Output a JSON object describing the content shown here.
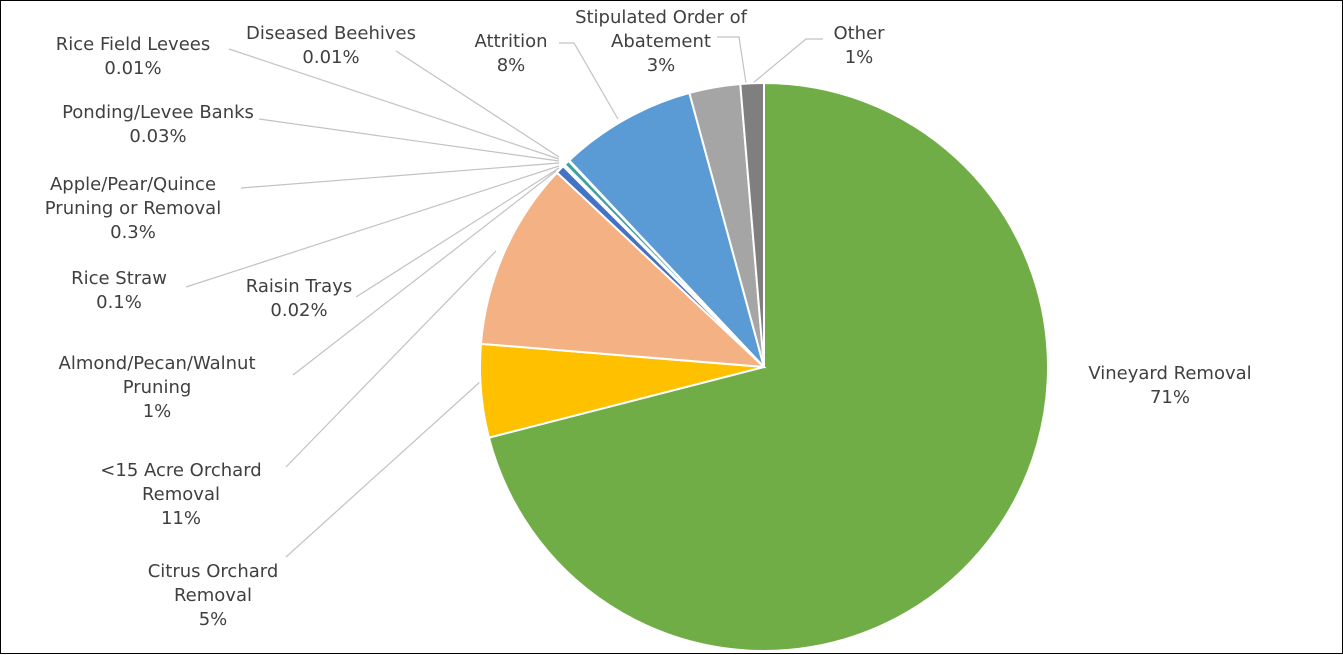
{
  "chart_data": {
    "type": "pie",
    "title": "",
    "start_angle_deg": 0,
    "direction": "clockwise",
    "slices": [
      {
        "name": "Vineyard Removal",
        "label_lines": [
          "Vineyard Removal"
        ],
        "pct_label": "71%",
        "value": 71.0,
        "color": "#70ad47"
      },
      {
        "name": "Citrus Orchard Removal",
        "label_lines": [
          "Citrus Orchard",
          "Removal"
        ],
        "pct_label": "5%",
        "value": 5.3,
        "color": "#ffc000"
      },
      {
        "name": "<15 Acre Orchard Removal",
        "label_lines": [
          "<15 Acre Orchard",
          "Removal"
        ],
        "pct_label": "11%",
        "value": 10.7,
        "color": "#f4b183"
      },
      {
        "name": "Almond/Pecan/Walnut Pruning",
        "label_lines": [
          "Almond/Pecan/Walnut",
          "Pruning"
        ],
        "pct_label": "1%",
        "value": 0.5,
        "color": "#4472c4"
      },
      {
        "name": "Raisin Trays",
        "label_lines": [
          "Raisin Trays"
        ],
        "pct_label": "0.02%",
        "value": 0.02,
        "color": "#c55a11"
      },
      {
        "name": "Rice Straw",
        "label_lines": [
          "Rice Straw"
        ],
        "pct_label": "0.1%",
        "value": 0.1,
        "color": "#548235"
      },
      {
        "name": "Apple/Pear/Quince Pruning or Removal",
        "label_lines": [
          "Apple/Pear/Quince",
          "Pruning or Removal"
        ],
        "pct_label": "0.3%",
        "value": 0.3,
        "color": "#43a0a0"
      },
      {
        "name": "Ponding/Levee Banks",
        "label_lines": [
          "Ponding/Levee Banks"
        ],
        "pct_label": "0.03%",
        "value": 0.03,
        "color": "#7f6000"
      },
      {
        "name": "Rice Field Levees",
        "label_lines": [
          "Rice Field Levees"
        ],
        "pct_label": "0.01%",
        "value": 0.01,
        "color": "#264478"
      },
      {
        "name": "Diseased Beehives",
        "label_lines": [
          "Diseased Beehives"
        ],
        "pct_label": "0.01%",
        "value": 0.01,
        "color": "#9e480e"
      },
      {
        "name": "Attrition",
        "label_lines": [
          "Attrition"
        ],
        "pct_label": "8%",
        "value": 7.8,
        "color": "#5b9bd5"
      },
      {
        "name": "Stipulated Order of Abatement",
        "label_lines": [
          "Stipulated Order of",
          "Abatement"
        ],
        "pct_label": "3%",
        "value": 2.9,
        "color": "#a5a5a5"
      },
      {
        "name": "Other",
        "label_lines": [
          "Other"
        ],
        "pct_label": "1%",
        "value": 1.33,
        "color": "#7f7f7f"
      }
    ]
  }
}
